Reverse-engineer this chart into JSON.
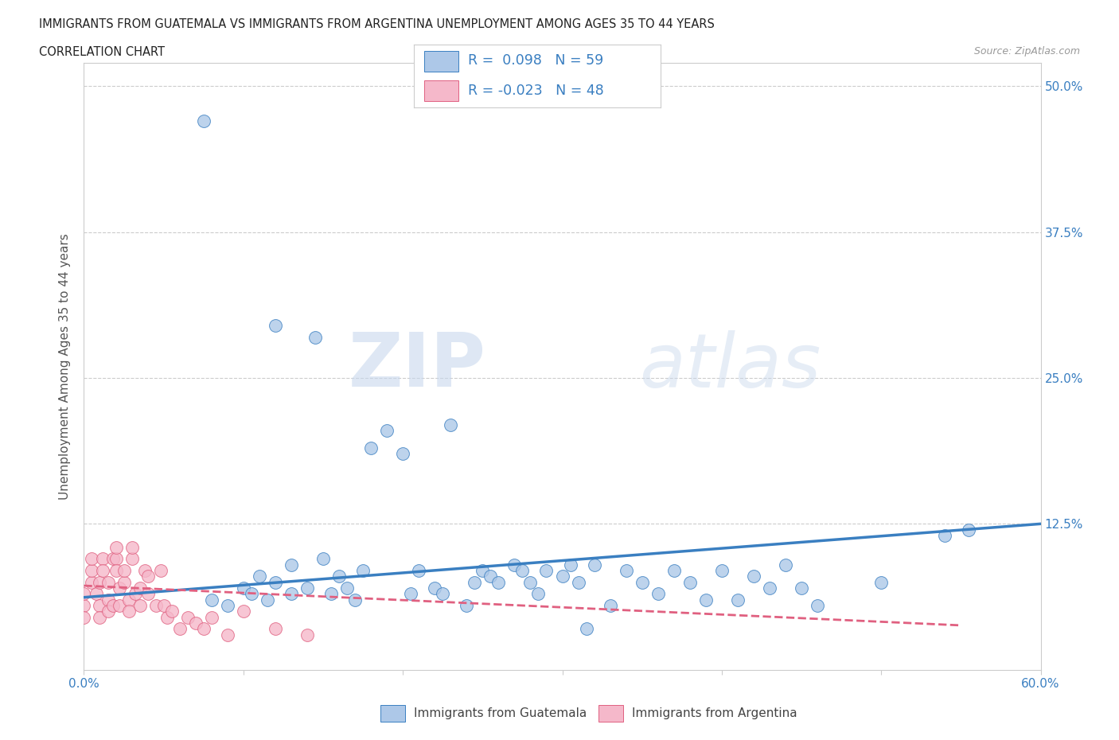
{
  "title_line1": "IMMIGRANTS FROM GUATEMALA VS IMMIGRANTS FROM ARGENTINA UNEMPLOYMENT AMONG AGES 35 TO 44 YEARS",
  "title_line2": "CORRELATION CHART",
  "source": "Source: ZipAtlas.com",
  "ylabel": "Unemployment Among Ages 35 to 44 years",
  "xlim": [
    0.0,
    0.6
  ],
  "ylim": [
    0.0,
    0.52
  ],
  "r_guatemala": 0.098,
  "n_guatemala": 59,
  "r_argentina": -0.023,
  "n_argentina": 48,
  "color_guatemala": "#adc8e8",
  "color_argentina": "#f5b8ca",
  "color_trend_guatemala": "#3a7fc1",
  "color_trend_argentina": "#e06080",
  "watermark_zip": "ZIP",
  "watermark_atlas": "atlas",
  "legend_label_guatemala": "Immigrants from Guatemala",
  "legend_label_argentina": "Immigrants from Argentina",
  "guatemala_x": [
    0.075,
    0.12,
    0.145,
    0.08,
    0.09,
    0.1,
    0.105,
    0.11,
    0.115,
    0.12,
    0.13,
    0.13,
    0.14,
    0.15,
    0.155,
    0.16,
    0.165,
    0.17,
    0.175,
    0.18,
    0.19,
    0.2,
    0.205,
    0.21,
    0.22,
    0.225,
    0.23,
    0.24,
    0.245,
    0.25,
    0.255,
    0.26,
    0.27,
    0.275,
    0.28,
    0.285,
    0.29,
    0.3,
    0.305,
    0.31,
    0.315,
    0.32,
    0.33,
    0.34,
    0.35,
    0.36,
    0.37,
    0.38,
    0.39,
    0.4,
    0.41,
    0.42,
    0.43,
    0.44,
    0.45,
    0.46,
    0.5,
    0.54,
    0.555
  ],
  "guatemala_y": [
    0.47,
    0.295,
    0.285,
    0.06,
    0.055,
    0.07,
    0.065,
    0.08,
    0.06,
    0.075,
    0.065,
    0.09,
    0.07,
    0.095,
    0.065,
    0.08,
    0.07,
    0.06,
    0.085,
    0.19,
    0.205,
    0.185,
    0.065,
    0.085,
    0.07,
    0.065,
    0.21,
    0.055,
    0.075,
    0.085,
    0.08,
    0.075,
    0.09,
    0.085,
    0.075,
    0.065,
    0.085,
    0.08,
    0.09,
    0.075,
    0.035,
    0.09,
    0.055,
    0.085,
    0.075,
    0.065,
    0.085,
    0.075,
    0.06,
    0.085,
    0.06,
    0.08,
    0.07,
    0.09,
    0.07,
    0.055,
    0.075,
    0.115,
    0.12
  ],
  "argentina_x": [
    0.0,
    0.0,
    0.0,
    0.005,
    0.005,
    0.005,
    0.008,
    0.01,
    0.01,
    0.01,
    0.012,
    0.012,
    0.015,
    0.015,
    0.015,
    0.018,
    0.018,
    0.02,
    0.02,
    0.02,
    0.022,
    0.022,
    0.025,
    0.025,
    0.028,
    0.028,
    0.03,
    0.03,
    0.032,
    0.035,
    0.035,
    0.038,
    0.04,
    0.04,
    0.045,
    0.048,
    0.05,
    0.052,
    0.055,
    0.06,
    0.065,
    0.07,
    0.075,
    0.08,
    0.09,
    0.1,
    0.12,
    0.14
  ],
  "argentina_y": [
    0.055,
    0.065,
    0.045,
    0.075,
    0.085,
    0.095,
    0.065,
    0.075,
    0.055,
    0.045,
    0.095,
    0.085,
    0.075,
    0.06,
    0.05,
    0.095,
    0.055,
    0.095,
    0.105,
    0.085,
    0.07,
    0.055,
    0.075,
    0.085,
    0.06,
    0.05,
    0.095,
    0.105,
    0.065,
    0.07,
    0.055,
    0.085,
    0.08,
    0.065,
    0.055,
    0.085,
    0.055,
    0.045,
    0.05,
    0.035,
    0.045,
    0.04,
    0.035,
    0.045,
    0.03,
    0.05,
    0.035,
    0.03
  ],
  "trend_g_x0": 0.0,
  "trend_g_x1": 0.6,
  "trend_g_y0": 0.062,
  "trend_g_y1": 0.125,
  "trend_a_x0": 0.0,
  "trend_a_x1": 0.55,
  "trend_a_y0": 0.072,
  "trend_a_y1": 0.038
}
